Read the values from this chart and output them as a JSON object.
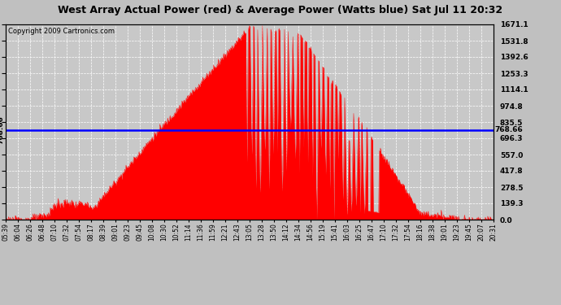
{
  "title": "West Array Actual Power (red) & Average Power (Watts blue) Sat Jul 11 20:32",
  "copyright": "Copyright 2009 Cartronics.com",
  "avg_power": 768.66,
  "y_max": 1671.1,
  "y_min": 0.0,
  "yticks": [
    0.0,
    139.3,
    278.5,
    417.8,
    557.0,
    696.3,
    835.5,
    974.8,
    1114.1,
    1253.3,
    1392.6,
    1531.8,
    1671.1
  ],
  "background_color": "#c0c0c0",
  "plot_bg_color": "#c8c8c8",
  "fill_color": "#ff0000",
  "line_color": "#ff0000",
  "avg_line_color": "#0000ff",
  "grid_color": "#ffffff",
  "xtick_labels": [
    "05:39",
    "06:04",
    "06:26",
    "06:48",
    "07:10",
    "07:32",
    "07:54",
    "08:17",
    "08:39",
    "09:01",
    "09:23",
    "09:45",
    "10:08",
    "10:30",
    "10:52",
    "11:14",
    "11:36",
    "11:59",
    "12:21",
    "12:43",
    "13:05",
    "13:28",
    "13:50",
    "14:12",
    "14:34",
    "14:56",
    "15:19",
    "15:41",
    "16:03",
    "16:25",
    "16:47",
    "17:10",
    "17:32",
    "17:54",
    "18:16",
    "18:38",
    "19:01",
    "19:23",
    "19:45",
    "20:07",
    "20:31"
  ],
  "left_label_value": "768.66",
  "right_label_value": "768.66"
}
